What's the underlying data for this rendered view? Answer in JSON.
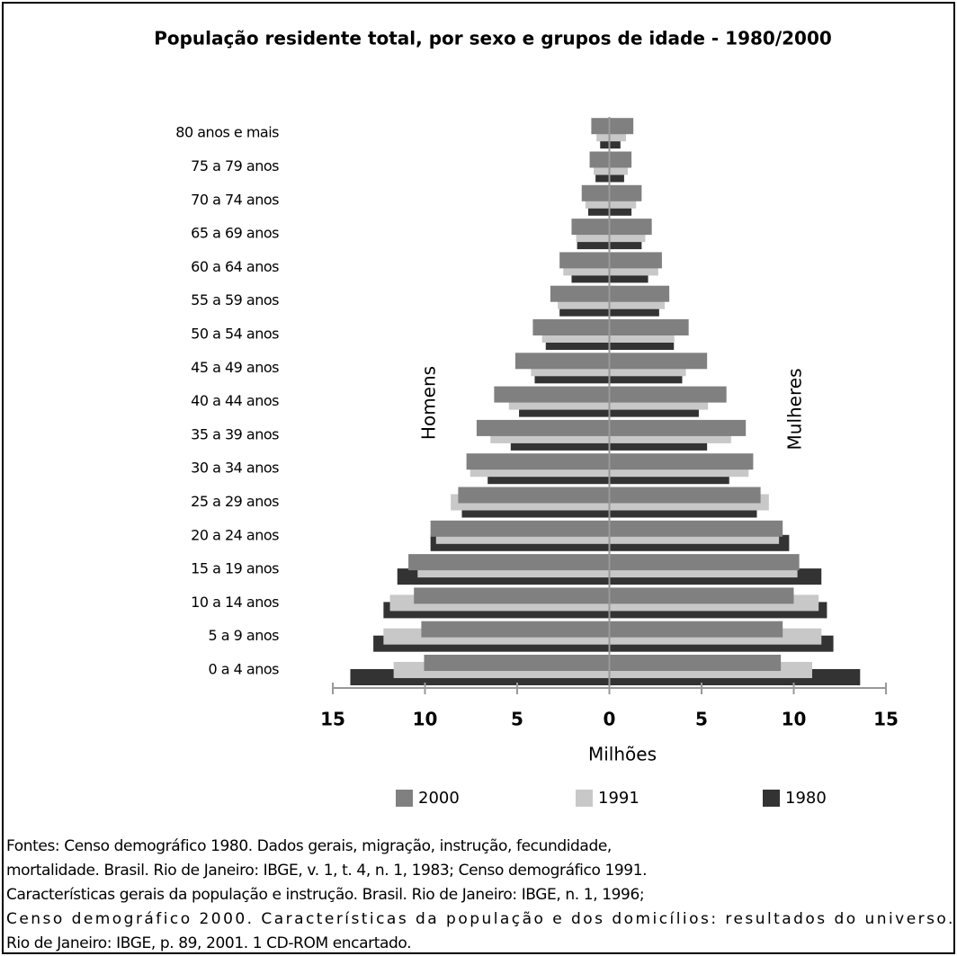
{
  "chart_data": {
    "type": "pyramid",
    "title": "População residente total, por sexo e grupos de idade - 1980/2000",
    "left_label": "Homens",
    "right_label": "Mulheres",
    "x_label": "Milhões",
    "categories": [
      "0 a 4 anos",
      "5 a 9 anos",
      "10 a 14 anos",
      "15 a 19 anos",
      "20 a 24 anos",
      "25 a 29 anos",
      "30 a 34 anos",
      "35 a 39 anos",
      "40 a 44 anos",
      "45 a 49 anos",
      "50 a 54 anos",
      "55 a 59 anos",
      "60 a 64 anos",
      "65 a 69 anos",
      "70 a 74 anos",
      "75 a 79 anos",
      "80 anos e mais"
    ],
    "series": [
      {
        "name": "2000",
        "color": "#808080",
        "men": [
          -10.05,
          -10.2,
          -10.6,
          -10.9,
          -9.7,
          -8.2,
          -7.75,
          -7.2,
          -6.25,
          -5.1,
          -4.15,
          -3.2,
          -2.7,
          -2.05,
          -1.5,
          -1.07,
          -0.98
        ],
        "women": [
          9.3,
          9.4,
          10.0,
          10.3,
          9.4,
          8.2,
          7.8,
          7.4,
          6.35,
          5.3,
          4.3,
          3.25,
          2.85,
          2.3,
          1.75,
          1.2,
          1.3
        ]
      },
      {
        "name": "1991",
        "color": "#c8c8c8",
        "men": [
          -11.7,
          -12.25,
          -11.9,
          -10.4,
          -9.4,
          -8.6,
          -7.55,
          -6.45,
          -5.45,
          -4.25,
          -3.65,
          -2.8,
          -2.5,
          -1.8,
          -1.3,
          -0.85,
          -0.7
        ],
        "women": [
          11.0,
          11.5,
          11.35,
          10.2,
          9.2,
          8.65,
          7.55,
          6.6,
          5.35,
          4.15,
          3.5,
          3.0,
          2.65,
          1.95,
          1.45,
          1.0,
          0.9
        ]
      },
      {
        "name": "1980",
        "color": "#333333",
        "men": [
          -14.05,
          -12.8,
          -12.25,
          -11.5,
          -9.7,
          -8.0,
          -6.6,
          -5.35,
          -4.9,
          -4.05,
          -3.45,
          -2.7,
          -2.05,
          -1.75,
          -1.15,
          -0.75,
          -0.5
        ],
        "women": [
          13.6,
          12.15,
          11.8,
          11.5,
          9.75,
          8.0,
          6.5,
          5.3,
          4.85,
          3.95,
          3.5,
          2.7,
          2.1,
          1.75,
          1.2,
          0.8,
          0.6
        ]
      }
    ],
    "xlim": [
      -15,
      15
    ],
    "xticks": [
      {
        "value": -15,
        "label": "15"
      },
      {
        "value": -10,
        "label": "10"
      },
      {
        "value": -5,
        "label": "5"
      },
      0,
      5,
      10,
      15
    ],
    "notes": [
      "Fontes: Censo demográfico 1980. Dados gerais, migração, instrução, fecundidade,",
      "mortalidade. Brasil. Rio de Janeiro: IBGE, v. 1, t. 4, n. 1, 1983;  Censo demográfico 1991.",
      "Características gerais da população e instrução. Brasil. Rio de Janeiro: IBGE, n. 1, 1996;",
      "Censo demográfico 2000. Características da população e dos domicílios: resultados do universo.",
      "Rio de Janeiro: IBGE, p. 89, 2001. 1 CD-ROM encartado."
    ]
  }
}
